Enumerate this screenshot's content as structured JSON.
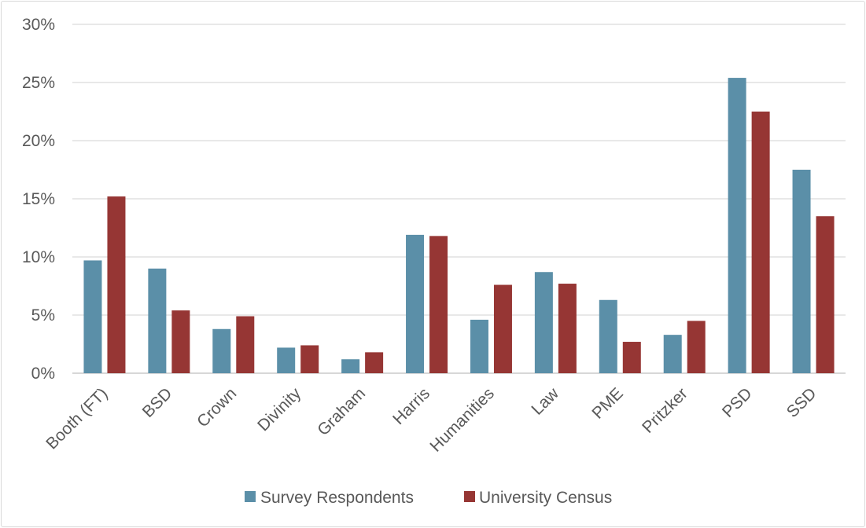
{
  "chart_data": {
    "type": "bar",
    "title": "",
    "xlabel": "",
    "ylabel": "",
    "ylim": [
      0,
      30
    ],
    "ytick_step": 5,
    "ytick_suffix": "%",
    "grid": true,
    "legend_position": "bottom",
    "categories": [
      "Booth (FT)",
      "BSD",
      "Crown",
      "Divinity",
      "Graham",
      "Harris",
      "Humanities",
      "Law",
      "PME",
      "Pritzker",
      "PSD",
      "SSD"
    ],
    "series": [
      {
        "name": "Survey Respondents",
        "color": "#5b8fa8",
        "values": [
          9.7,
          9.0,
          3.8,
          2.2,
          1.2,
          11.9,
          4.6,
          8.7,
          6.3,
          3.3,
          25.4,
          17.5
        ]
      },
      {
        "name": "University Census",
        "color": "#963634",
        "values": [
          15.2,
          5.4,
          4.9,
          2.4,
          1.8,
          11.8,
          7.6,
          7.7,
          2.7,
          4.5,
          22.5,
          13.5
        ]
      }
    ]
  }
}
